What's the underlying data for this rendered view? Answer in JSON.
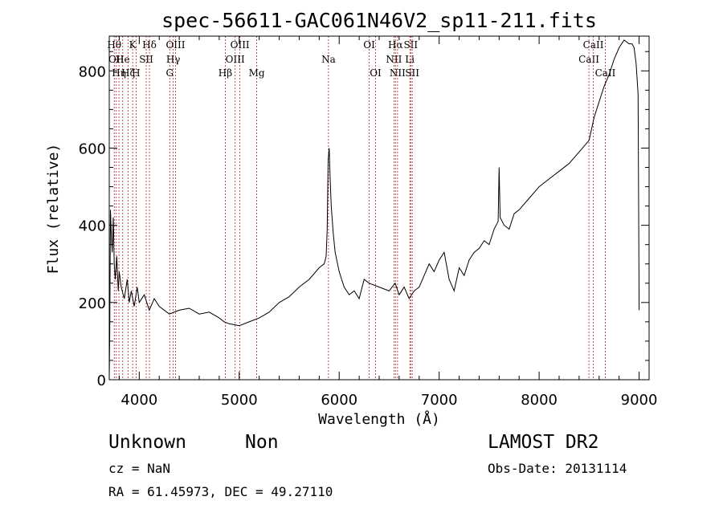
{
  "chart_data": {
    "type": "line",
    "title": "spec-56611-GAC061N46V2_sp11-211.fits",
    "xlabel": "Wavelength (Å)",
    "ylabel": "Flux (relative)",
    "xlim": [
      3700,
      9100
    ],
    "ylim": [
      0,
      890
    ],
    "x_ticks": [
      4000,
      5000,
      6000,
      7000,
      8000,
      9000
    ],
    "y_ticks": [
      0,
      200,
      400,
      600,
      800
    ],
    "grid": false,
    "series": [
      {
        "x": [
          3700,
          3705,
          3712,
          3720,
          3730,
          3740,
          3750,
          3760,
          3775,
          3790,
          3800,
          3820,
          3850,
          3880,
          3900,
          3920,
          3950,
          3980,
          4000,
          4050,
          4100,
          4150,
          4200,
          4300,
          4400,
          4500,
          4600,
          4700,
          4800,
          4850,
          4900,
          5000,
          5100,
          5200,
          5300,
          5400,
          5500,
          5600,
          5700,
          5800,
          5850,
          5870,
          5880,
          5890,
          5900,
          5910,
          5920,
          5940,
          5960,
          6000,
          6050,
          6100,
          6150,
          6200,
          6250,
          6300,
          6400,
          6500,
          6560,
          6600,
          6650,
          6700,
          6750,
          6800,
          6850,
          6900,
          6950,
          7000,
          7050,
          7100,
          7150,
          7200,
          7250,
          7300,
          7350,
          7400,
          7450,
          7500,
          7550,
          7590,
          7600,
          7610,
          7650,
          7700,
          7750,
          7800,
          7900,
          8000,
          8100,
          8200,
          8300,
          8400,
          8500,
          8550,
          8600,
          8650,
          8700,
          8750,
          8800,
          8850,
          8900,
          8930,
          8950,
          8970,
          8990,
          9000
        ],
        "y": [
          5,
          120,
          440,
          380,
          330,
          420,
          300,
          260,
          320,
          230,
          280,
          240,
          210,
          260,
          200,
          230,
          190,
          240,
          200,
          220,
          180,
          210,
          190,
          170,
          180,
          185,
          170,
          175,
          160,
          150,
          145,
          140,
          150,
          160,
          175,
          200,
          215,
          240,
          260,
          290,
          300,
          320,
          390,
          570,
          600,
          520,
          450,
          380,
          330,
          280,
          240,
          220,
          230,
          210,
          260,
          250,
          240,
          230,
          250,
          220,
          240,
          210,
          230,
          240,
          270,
          300,
          280,
          310,
          330,
          260,
          230,
          290,
          270,
          310,
          330,
          340,
          360,
          350,
          390,
          410,
          550,
          420,
          400,
          390,
          430,
          440,
          470,
          500,
          520,
          540,
          560,
          590,
          620,
          680,
          720,
          760,
          790,
          830,
          860,
          880,
          870,
          870,
          860,
          820,
          740,
          180
        ]
      }
    ],
    "lines": [
      {
        "w": 3750,
        "label": "Hθ",
        "row": 0
      },
      {
        "w": 3770,
        "label": "OII",
        "row": 1
      },
      {
        "w": 3797,
        "label": "Hη",
        "row": 2
      },
      {
        "w": 3835,
        "label": "He",
        "row": 1
      },
      {
        "w": 3889,
        "label": "Hζ",
        "row": 2
      },
      {
        "w": 3934,
        "label": "K",
        "row": 0
      },
      {
        "w": 3968,
        "label": "H",
        "row": 2
      },
      {
        "w": 4070,
        "label": "SII",
        "row": 1
      },
      {
        "w": 4102,
        "label": "Hδ",
        "row": 0
      },
      {
        "w": 4305,
        "label": "G",
        "row": 2
      },
      {
        "w": 4340,
        "label": "Hγ",
        "row": 1
      },
      {
        "w": 4363,
        "label": "OIII",
        "row": 0
      },
      {
        "w": 4861,
        "label": "Hβ",
        "row": 2
      },
      {
        "w": 4959,
        "label": "OIII",
        "row": 1
      },
      {
        "w": 5007,
        "label": "OIII",
        "row": 0
      },
      {
        "w": 5175,
        "label": "Mg",
        "row": 2
      },
      {
        "w": 5893,
        "label": "Na",
        "row": 1
      },
      {
        "w": 6300,
        "label": "OI",
        "row": 0
      },
      {
        "w": 6364,
        "label": "OI",
        "row": 2
      },
      {
        "w": 6548,
        "label": "NII",
        "row": 1
      },
      {
        "w": 6563,
        "label": "Hα",
        "row": 0
      },
      {
        "w": 6584,
        "label": "NII",
        "row": 2
      },
      {
        "w": 6707,
        "label": "Li",
        "row": 1
      },
      {
        "w": 6716,
        "label": "SII",
        "row": 0
      },
      {
        "w": 6731,
        "label": "SII",
        "row": 2
      },
      {
        "w": 8498,
        "label": "CaII",
        "row": 1
      },
      {
        "w": 8542,
        "label": "CaII",
        "row": 0
      },
      {
        "w": 8662,
        "label": "CaII",
        "row": 2
      }
    ]
  },
  "info": {
    "class": "Unknown",
    "subclass": "Non",
    "survey": "LAMOST DR2",
    "cz": "cz = NaN",
    "obs_date": "Obs-Date: 20131114",
    "coords": "RA =  61.45973, DEC =  49.27110"
  }
}
